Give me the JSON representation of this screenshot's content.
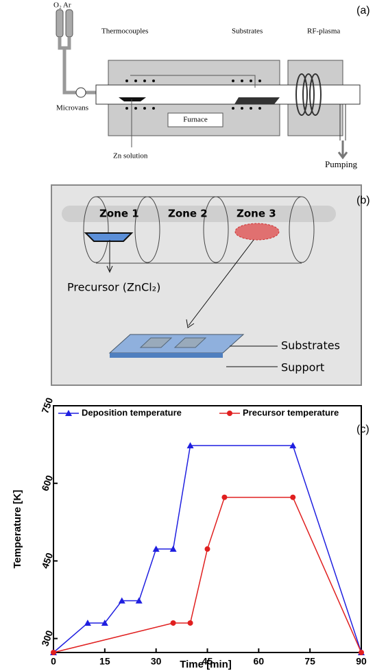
{
  "panel_a": {
    "tag": "(a)",
    "gas": "O₂ Ar",
    "thermocouples": "Thermocouples",
    "substrates": "Substrates",
    "rf_plasma": "RF-plasma",
    "microvans": "Microvans",
    "furnace": "Furnace",
    "zn_solution": "Zn solution",
    "pumping": "Pumping"
  },
  "panel_b": {
    "tag": "(b)",
    "zone1": "Zone 1",
    "zone2": "Zone 2",
    "zone3": "Zone 3",
    "precursor": "Precursor (ZnCl₂)",
    "substrates": "Substrates",
    "support": "Support"
  },
  "chart_data": {
    "type": "line",
    "tag": "(c)",
    "x_label": "Time [min]",
    "y_label": "Temperature [K]",
    "xlim": [
      0,
      90
    ],
    "xticks": [
      0,
      15,
      30,
      45,
      60,
      75,
      90
    ],
    "ylim": [
      273,
      750
    ],
    "yticks": [
      300,
      450,
      600,
      750
    ],
    "series": [
      {
        "name": "Deposition temperature",
        "color": "#1f1fe0",
        "marker": "triangle",
        "x": [
          0,
          10,
          15,
          20,
          25,
          30,
          35,
          40,
          70,
          90
        ],
        "values": [
          273,
          330,
          330,
          373,
          373,
          473,
          473,
          673,
          673,
          273
        ]
      },
      {
        "name": "Precursor temperature",
        "color": "#e01f1f",
        "marker": "circle",
        "x": [
          0,
          35,
          40,
          45,
          50,
          70,
          90
        ],
        "values": [
          273,
          330,
          330,
          473,
          573,
          573,
          273
        ]
      }
    ]
  }
}
